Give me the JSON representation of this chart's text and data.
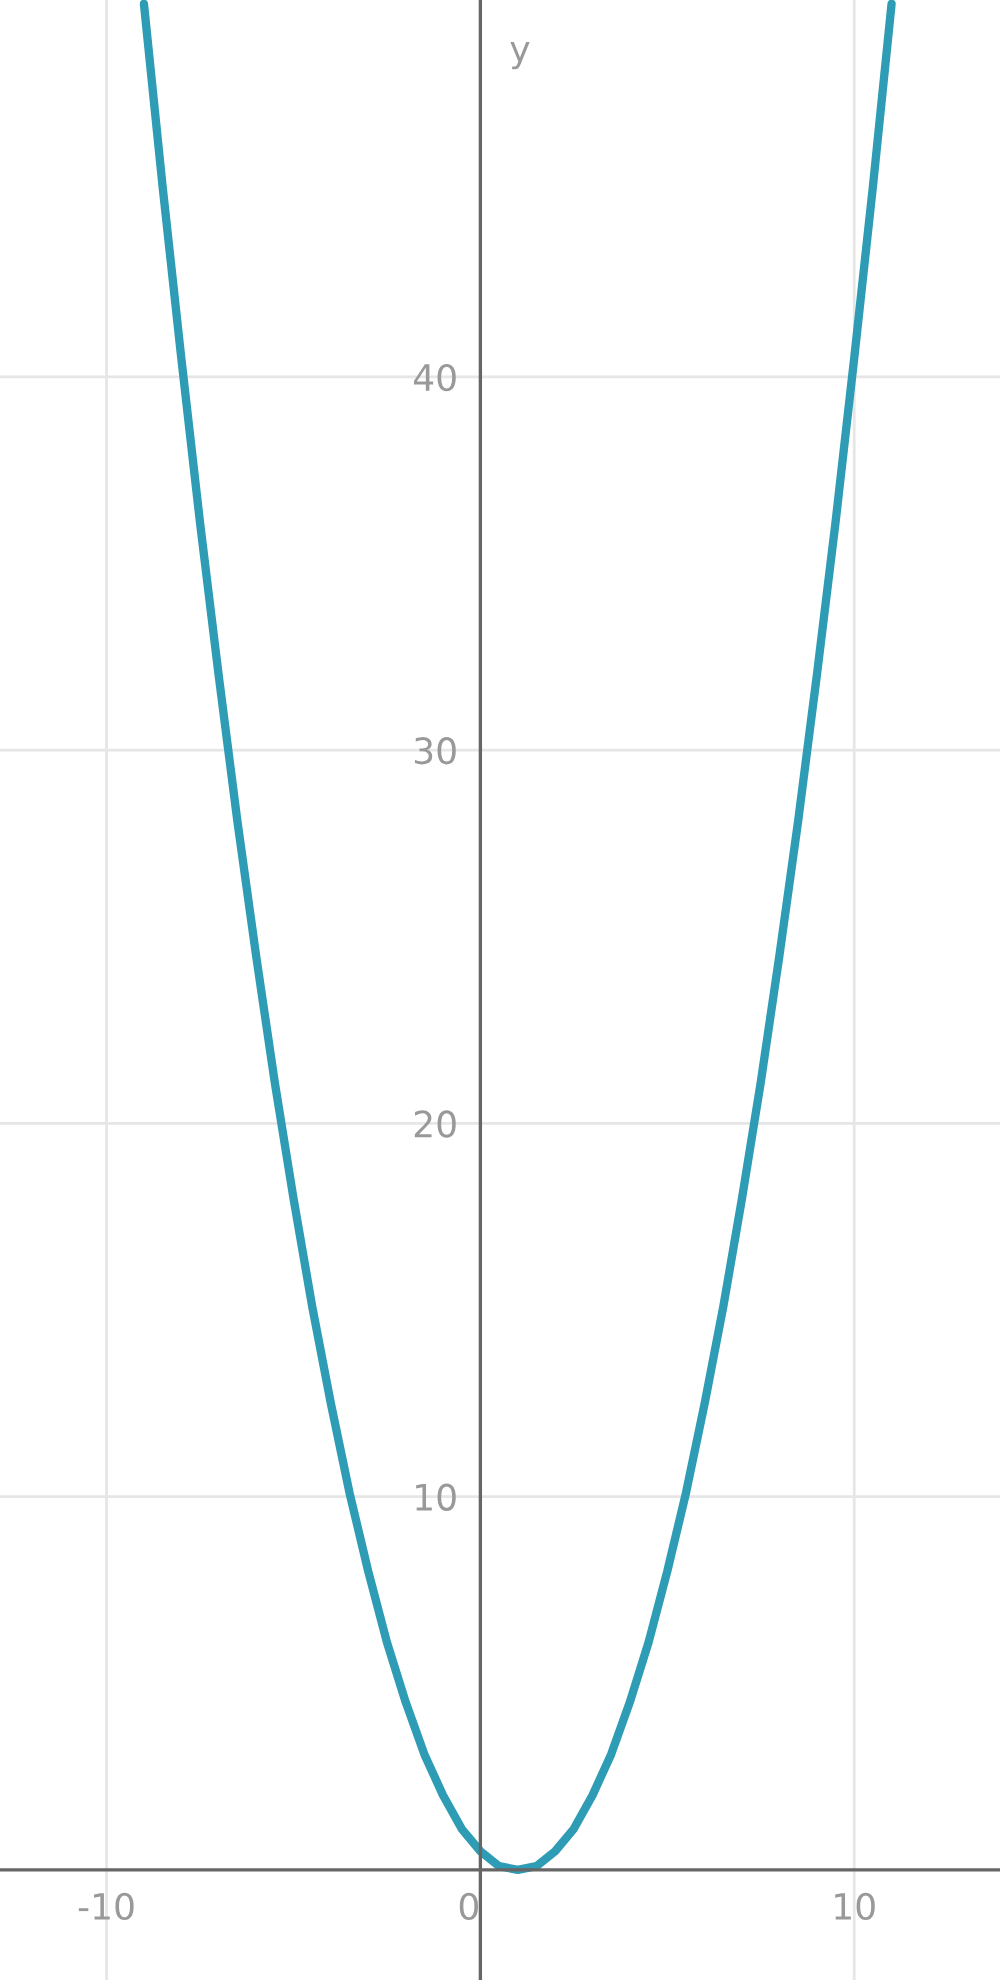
{
  "chart_data": {
    "type": "line",
    "ylabel": "y",
    "x": [
      -9,
      -8.5,
      -8,
      -7.5,
      -7,
      -6.5,
      -6,
      -5.5,
      -5,
      -4.5,
      -4,
      -3.5,
      -3,
      -2.5,
      -2,
      -1.5,
      -1,
      -0.5,
      0,
      0.5,
      1,
      1.5,
      2,
      2.5,
      3,
      3.5,
      4,
      4.5,
      5,
      5.5,
      6,
      6.5,
      7,
      7.5,
      8,
      8.5,
      9,
      9.5,
      10,
      10.5,
      11
    ],
    "series": [
      {
        "color": "#2d9cb4",
        "values": [
          50,
          45.1,
          40.5,
          36.1,
          32,
          28.1,
          24.5,
          21.1,
          18,
          15.1,
          12.5,
          10.1,
          8,
          6.1,
          4.5,
          3.1,
          2,
          1.1,
          0.5,
          0.1,
          0,
          0.1,
          0.5,
          1.1,
          2,
          3.1,
          4.5,
          6.1,
          8,
          10.1,
          12.5,
          15.1,
          18,
          21.1,
          24.5,
          28.1,
          32,
          36.1,
          40.5,
          45.1,
          50
        ]
      }
    ],
    "xlim": [
      -12.85,
      13.9
    ],
    "ylim": [
      -2.95,
      50.1
    ],
    "xticks": [
      -10,
      0,
      10
    ],
    "yticks": [
      10,
      20,
      30,
      40
    ],
    "grid": true,
    "marker": "none",
    "line_style": "solid"
  }
}
